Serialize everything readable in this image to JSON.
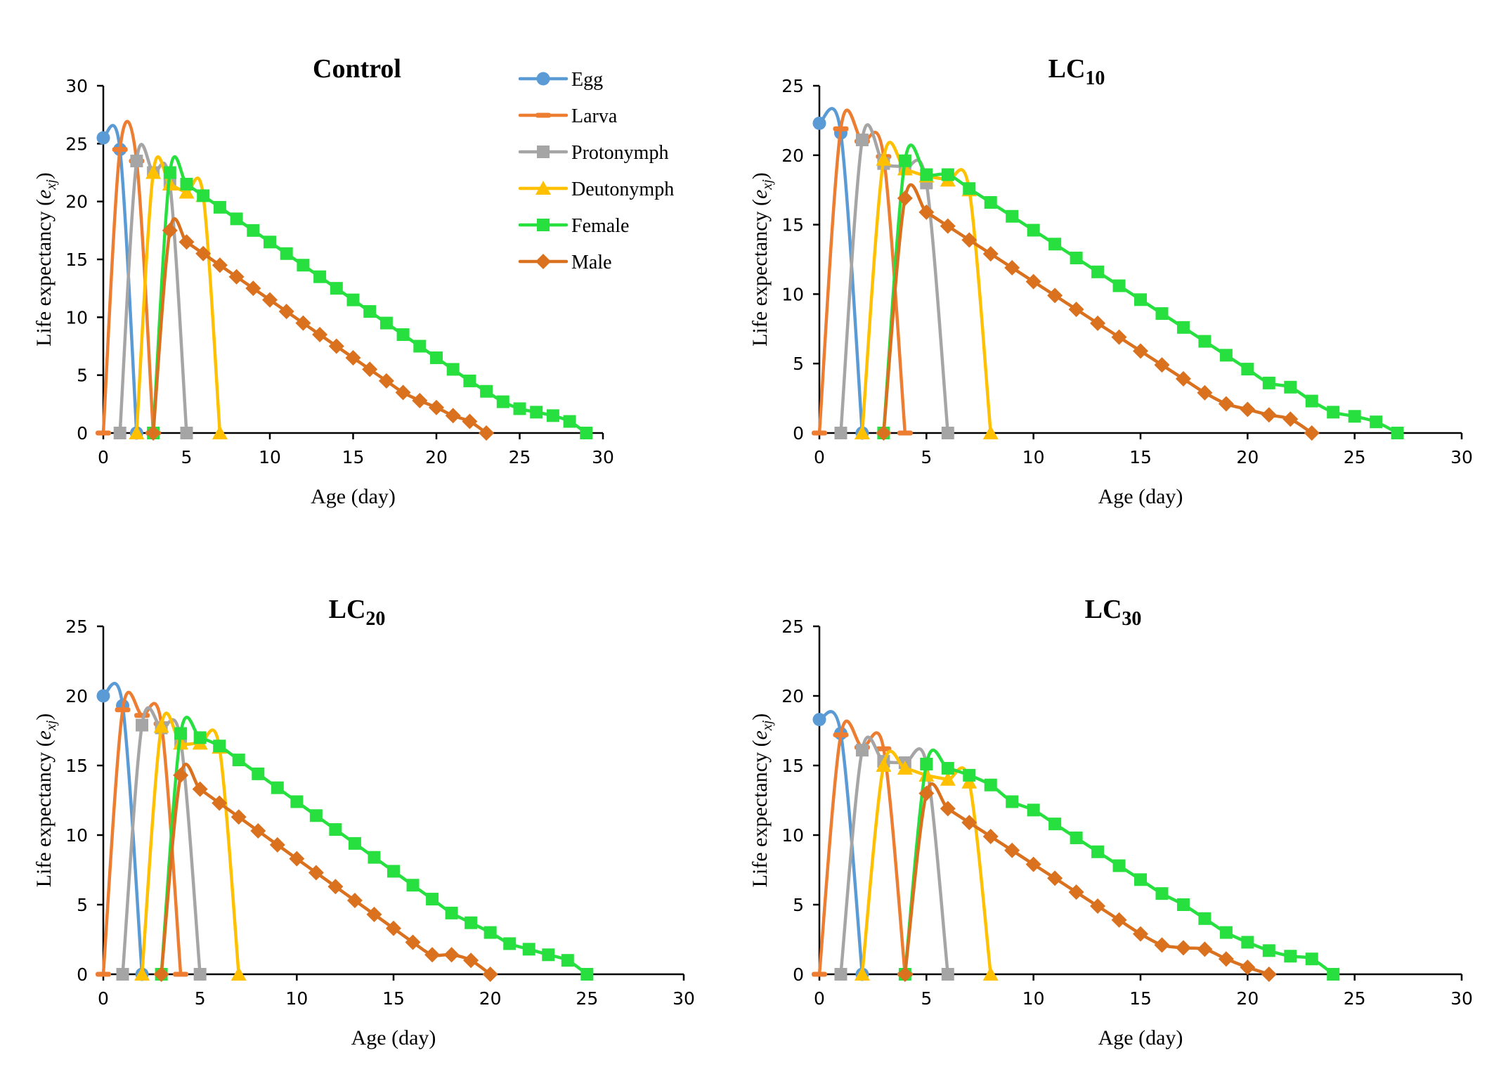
{
  "chart_data": {
    "type": "line",
    "legend": {
      "placement": "top-right of first panel",
      "entries": [
        {
          "name": "Egg",
          "color": "#5B9BD5",
          "marker": "circle"
        },
        {
          "name": "Larva",
          "color": "#ED7D31",
          "marker": "dash"
        },
        {
          "name": "Protonymph",
          "color": "#A5A5A5",
          "marker": "square"
        },
        {
          "name": "Deutonymph",
          "color": "#FFC000",
          "marker": "triangle"
        },
        {
          "name": "Female",
          "color": "#27E03F",
          "marker": "square"
        },
        {
          "name": "Male",
          "color": "#D9711F",
          "marker": "diamond"
        }
      ]
    },
    "panels": [
      {
        "id": "control",
        "title": "Control",
        "title_sub": "",
        "xlabel": "Age (day)",
        "ylabel_main": "Life expectancy (",
        "ylabel_italic": "e",
        "ylabel_sub": "xj",
        "ylabel_close": ")",
        "xlim": [
          0,
          30
        ],
        "ylim": [
          0,
          30
        ],
        "xticks": [
          0,
          5,
          10,
          15,
          20,
          25,
          30
        ],
        "yticks": [
          0,
          5,
          10,
          15,
          20,
          25,
          30
        ],
        "series": [
          {
            "name": "Egg",
            "x": [
              0,
              1,
              2
            ],
            "y": [
              25.5,
              24.5,
              0
            ]
          },
          {
            "name": "Larva",
            "x": [
              0,
              1,
              2,
              3
            ],
            "y": [
              0,
              24.5,
              23.5,
              0
            ]
          },
          {
            "name": "Protonymph",
            "x": [
              1,
              2,
              3,
              4,
              5
            ],
            "y": [
              0,
              23.5,
              22.5,
              21.5,
              0
            ]
          },
          {
            "name": "Deutonymph",
            "x": [
              2,
              3,
              4,
              5,
              6,
              7
            ],
            "y": [
              0,
              22.5,
              21.5,
              20.8,
              20.5,
              0
            ]
          },
          {
            "name": "Female",
            "x": [
              3,
              4,
              5,
              6,
              7,
              8,
              9,
              10,
              11,
              12,
              13,
              14,
              15,
              16,
              17,
              18,
              19,
              20,
              21,
              22,
              23,
              24,
              25,
              26,
              27,
              28,
              29
            ],
            "y": [
              0,
              22.5,
              21.5,
              20.5,
              19.5,
              18.5,
              17.5,
              16.5,
              15.5,
              14.5,
              13.5,
              12.5,
              11.5,
              10.5,
              9.5,
              8.5,
              7.5,
              6.5,
              5.5,
              4.5,
              3.6,
              2.7,
              2.1,
              1.8,
              1.5,
              1.0,
              0
            ]
          },
          {
            "name": "Male",
            "x": [
              3,
              4,
              5,
              6,
              7,
              8,
              9,
              10,
              11,
              12,
              13,
              14,
              15,
              16,
              17,
              18,
              19,
              20,
              21,
              22,
              23
            ],
            "y": [
              0,
              17.5,
              16.5,
              15.5,
              14.5,
              13.5,
              12.5,
              11.5,
              10.5,
              9.5,
              8.5,
              7.5,
              6.5,
              5.5,
              4.5,
              3.5,
              2.8,
              2.2,
              1.5,
              1.0,
              0
            ]
          }
        ]
      },
      {
        "id": "lc10",
        "title": "LC",
        "title_sub": "10",
        "xlabel": "Age (day)",
        "ylabel_main": "Life expectancy (",
        "ylabel_italic": "e",
        "ylabel_sub": "xj",
        "ylabel_close": ")",
        "xlim": [
          0,
          30
        ],
        "ylim": [
          0,
          25
        ],
        "xticks": [
          0,
          5,
          10,
          15,
          20,
          25,
          30
        ],
        "yticks": [
          0,
          5,
          10,
          15,
          20,
          25
        ],
        "series": [
          {
            "name": "Egg",
            "x": [
              0,
              1,
              2
            ],
            "y": [
              22.3,
              21.6,
              0
            ]
          },
          {
            "name": "Larva",
            "x": [
              0,
              1,
              2,
              3,
              4
            ],
            "y": [
              0,
              21.9,
              21.0,
              19.9,
              0
            ]
          },
          {
            "name": "Protonymph",
            "x": [
              1,
              2,
              3,
              4,
              5,
              6
            ],
            "y": [
              0,
              21.1,
              19.4,
              19.1,
              18.0,
              0
            ]
          },
          {
            "name": "Deutonymph",
            "x": [
              2,
              3,
              4,
              5,
              6,
              7,
              8
            ],
            "y": [
              0,
              19.7,
              19.0,
              18.5,
              18.2,
              17.5,
              0
            ]
          },
          {
            "name": "Female",
            "x": [
              3,
              4,
              5,
              6,
              7,
              8,
              9,
              10,
              11,
              12,
              13,
              14,
              15,
              16,
              17,
              18,
              19,
              20,
              21,
              22,
              23,
              24,
              25,
              26,
              27
            ],
            "y": [
              0,
              19.6,
              18.6,
              18.6,
              17.6,
              16.6,
              15.6,
              14.6,
              13.6,
              12.6,
              11.6,
              10.6,
              9.6,
              8.6,
              7.6,
              6.6,
              5.6,
              4.6,
              3.6,
              3.3,
              2.3,
              1.5,
              1.2,
              0.8,
              0
            ]
          },
          {
            "name": "Male",
            "x": [
              3,
              4,
              5,
              6,
              7,
              8,
              9,
              10,
              11,
              12,
              13,
              14,
              15,
              16,
              17,
              18,
              19,
              20,
              21,
              22,
              23
            ],
            "y": [
              0,
              16.9,
              15.9,
              14.9,
              13.9,
              12.9,
              11.9,
              10.9,
              9.9,
              8.9,
              7.9,
              6.9,
              5.9,
              4.9,
              3.9,
              2.9,
              2.1,
              1.7,
              1.3,
              1.0,
              0
            ]
          }
        ]
      },
      {
        "id": "lc20",
        "title": "LC",
        "title_sub": "20",
        "xlabel": "Age (day)",
        "ylabel_main": "Life expectancy (",
        "ylabel_italic": "e",
        "ylabel_sub": "xj",
        "ylabel_close": ")",
        "xlim": [
          0,
          30
        ],
        "ylim": [
          0,
          25
        ],
        "xticks": [
          0,
          5,
          10,
          15,
          20,
          25,
          30
        ],
        "yticks": [
          0,
          5,
          10,
          15,
          20,
          25
        ],
        "series": [
          {
            "name": "Egg",
            "x": [
              0,
              1,
              2
            ],
            "y": [
              20.0,
              19.3,
              0
            ]
          },
          {
            "name": "Larva",
            "x": [
              0,
              1,
              2,
              3,
              4
            ],
            "y": [
              0,
              19.0,
              18.6,
              18.0,
              0
            ]
          },
          {
            "name": "Protonymph",
            "x": [
              1,
              2,
              3,
              4,
              5
            ],
            "y": [
              0,
              17.9,
              17.7,
              16.8,
              0
            ]
          },
          {
            "name": "Deutonymph",
            "x": [
              2,
              3,
              4,
              5,
              6,
              7
            ],
            "y": [
              0,
              17.8,
              16.6,
              16.6,
              16.3,
              0
            ]
          },
          {
            "name": "Female",
            "x": [
              3,
              4,
              5,
              6,
              7,
              8,
              9,
              10,
              11,
              12,
              13,
              14,
              15,
              16,
              17,
              18,
              19,
              20,
              21,
              22,
              23,
              24,
              25
            ],
            "y": [
              0,
              17.3,
              17.0,
              16.4,
              15.4,
              14.4,
              13.4,
              12.4,
              11.4,
              10.4,
              9.4,
              8.4,
              7.4,
              6.4,
              5.4,
              4.4,
              3.7,
              3.0,
              2.2,
              1.8,
              1.4,
              1.0,
              0
            ]
          },
          {
            "name": "Male",
            "x": [
              3,
              4,
              5,
              6,
              7,
              8,
              9,
              10,
              11,
              12,
              13,
              14,
              15,
              16,
              17,
              18,
              19,
              20
            ],
            "y": [
              0,
              14.3,
              13.3,
              12.3,
              11.3,
              10.3,
              9.3,
              8.3,
              7.3,
              6.3,
              5.3,
              4.3,
              3.3,
              2.3,
              1.4,
              1.4,
              1.0,
              0
            ]
          }
        ]
      },
      {
        "id": "lc30",
        "title": "LC",
        "title_sub": "30",
        "xlabel": "Age (day)",
        "ylabel_main": "Life expectancy (",
        "ylabel_italic": "e",
        "ylabel_sub": "xj",
        "ylabel_close": ")",
        "xlim": [
          0,
          30
        ],
        "ylim": [
          0,
          25
        ],
        "xticks": [
          0,
          5,
          10,
          15,
          20,
          25,
          30
        ],
        "yticks": [
          0,
          5,
          10,
          15,
          20,
          25
        ],
        "series": [
          {
            "name": "Egg",
            "x": [
              0,
              1,
              2
            ],
            "y": [
              18.3,
              17.3,
              0
            ]
          },
          {
            "name": "Larva",
            "x": [
              0,
              1,
              2,
              3,
              4
            ],
            "y": [
              0,
              17.2,
              16.3,
              16.2,
              0
            ]
          },
          {
            "name": "Protonymph",
            "x": [
              1,
              2,
              3,
              4,
              5,
              6
            ],
            "y": [
              0,
              16.1,
              15.3,
              15.2,
              15.1,
              0
            ]
          },
          {
            "name": "Deutonymph",
            "x": [
              2,
              3,
              4,
              5,
              6,
              7,
              8
            ],
            "y": [
              0,
              15.0,
              14.8,
              14.3,
              14.0,
              13.8,
              0
            ]
          },
          {
            "name": "Female",
            "x": [
              4,
              5,
              6,
              7,
              8,
              9,
              10,
              11,
              12,
              13,
              14,
              15,
              16,
              17,
              18,
              19,
              20,
              21,
              22,
              23,
              24
            ],
            "y": [
              0,
              15.1,
              14.8,
              14.3,
              13.6,
              12.4,
              11.8,
              10.8,
              9.8,
              8.8,
              7.8,
              6.8,
              5.8,
              5.0,
              4.0,
              3.0,
              2.3,
              1.7,
              1.3,
              1.1,
              0
            ]
          },
          {
            "name": "Male",
            "x": [
              4,
              5,
              6,
              7,
              8,
              9,
              10,
              11,
              12,
              13,
              14,
              15,
              16,
              17,
              18,
              19,
              20,
              21
            ],
            "y": [
              0,
              13.0,
              11.9,
              10.9,
              9.9,
              8.9,
              7.9,
              6.9,
              5.9,
              4.9,
              3.9,
              2.9,
              2.1,
              1.9,
              1.8,
              1.1,
              0.5,
              0
            ]
          }
        ]
      }
    ]
  }
}
